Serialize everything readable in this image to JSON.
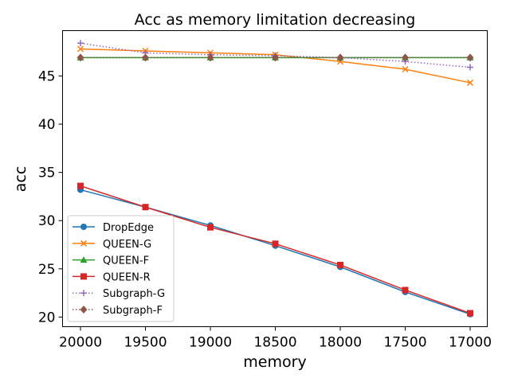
{
  "chart_data": {
    "type": "line",
    "title": "Acc as memory limitation decreasing",
    "xlabel": "memory",
    "ylabel": "acc",
    "x": [
      20000,
      19500,
      19000,
      18500,
      18000,
      17500,
      17000
    ],
    "x_ticks": [
      "20000",
      "19500",
      "19000",
      "18500",
      "18000",
      "17500",
      "17000"
    ],
    "y_ticks": [
      "20",
      "25",
      "30",
      "35",
      "40",
      "45"
    ],
    "y_tick_values": [
      20,
      25,
      30,
      35,
      40,
      45
    ],
    "ylim": [
      19.0,
      49.7
    ],
    "x_reversed": true,
    "grid": false,
    "legend_position": "lower-left",
    "series": [
      {
        "name": "DropEdge",
        "color": "#1f77b4",
        "marker": "circle",
        "linestyle": "solid",
        "values": [
          33.2,
          31.4,
          29.5,
          27.4,
          25.2,
          22.6,
          20.3
        ]
      },
      {
        "name": "QUEEN-G",
        "color": "#ff7f0e",
        "marker": "x",
        "linestyle": "solid",
        "values": [
          47.8,
          47.6,
          47.4,
          47.2,
          46.5,
          45.7,
          44.3
        ]
      },
      {
        "name": "QUEEN-F",
        "color": "#2ca02c",
        "marker": "triangle",
        "linestyle": "solid",
        "values": [
          46.9,
          46.9,
          46.9,
          46.9,
          46.9,
          46.9,
          46.9
        ]
      },
      {
        "name": "QUEEN-R",
        "color": "#d62728",
        "marker": "square",
        "linestyle": "solid",
        "values": [
          33.6,
          31.4,
          29.3,
          27.6,
          25.4,
          22.8,
          20.4
        ]
      },
      {
        "name": "Subgraph-G",
        "color": "#9467bd",
        "marker": "plus",
        "linestyle": "dotted",
        "values": [
          48.4,
          47.4,
          47.2,
          47.1,
          46.9,
          46.5,
          45.9
        ]
      },
      {
        "name": "Subgraph-F",
        "color": "#8c564b",
        "marker": "diamond",
        "linestyle": "dotted",
        "values": [
          46.9,
          46.9,
          46.9,
          46.9,
          46.9,
          46.9,
          46.9
        ]
      }
    ]
  }
}
